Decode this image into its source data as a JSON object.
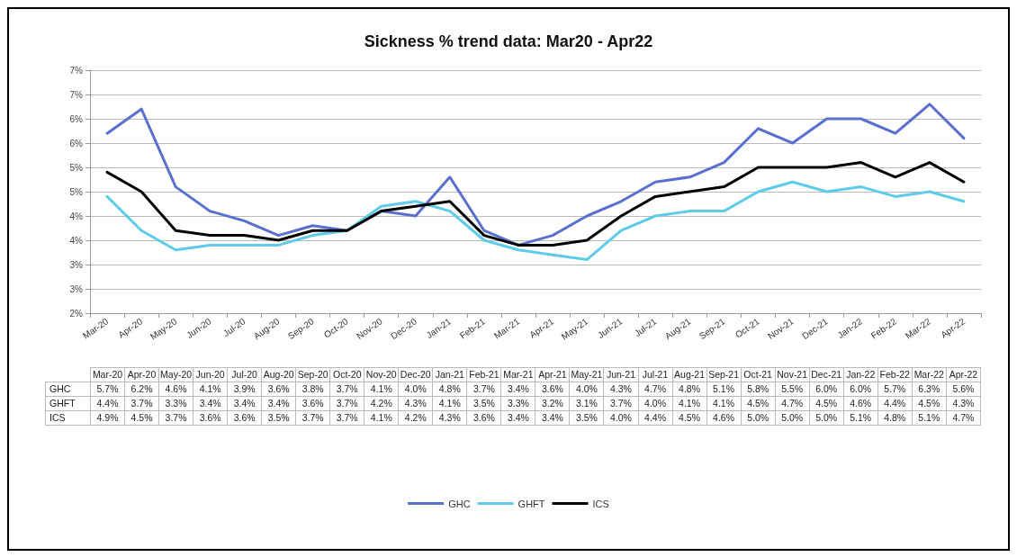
{
  "chart_data": {
    "type": "line",
    "title": "Sickness % trend data: Mar20 - Apr22",
    "categories": [
      "Mar-20",
      "Apr-20",
      "May-20",
      "Jun-20",
      "Jul-20",
      "Aug-20",
      "Sep-20",
      "Oct-20",
      "Nov-20",
      "Dec-20",
      "Jan-21",
      "Feb-21",
      "Mar-21",
      "Apr-21",
      "May-21",
      "Jun-21",
      "Jul-21",
      "Aug-21",
      "Sep-21",
      "Oct-21",
      "Nov-21",
      "Dec-21",
      "Jan-22",
      "Feb-22",
      "Mar-22",
      "Apr-22"
    ],
    "series": [
      {
        "name": "GHC",
        "color": "#5a6fcf",
        "values": [
          5.7,
          6.2,
          4.6,
          4.1,
          3.9,
          3.6,
          3.8,
          3.7,
          4.1,
          4.0,
          4.8,
          3.7,
          3.4,
          3.6,
          4.0,
          4.3,
          4.7,
          4.8,
          5.1,
          5.8,
          5.5,
          6.0,
          6.0,
          5.7,
          6.3,
          5.6
        ],
        "value_labels": [
          "5.7%",
          "6.2%",
          "4.6%",
          "4.1%",
          "3.9%",
          "3.6%",
          "3.8%",
          "3.7%",
          "4.1%",
          "4.0%",
          "4.8%",
          "3.7%",
          "3.4%",
          "3.6%",
          "4.0%",
          "4.3%",
          "4.7%",
          "4.8%",
          "5.1%",
          "5.8%",
          "5.5%",
          "6.0%",
          "6.0%",
          "5.7%",
          "6.3%",
          "5.6%"
        ]
      },
      {
        "name": "GHFT",
        "color": "#5fcbea",
        "values": [
          4.4,
          3.7,
          3.3,
          3.4,
          3.4,
          3.4,
          3.6,
          3.7,
          4.2,
          4.3,
          4.1,
          3.5,
          3.3,
          3.2,
          3.1,
          3.7,
          4.0,
          4.1,
          4.1,
          4.5,
          4.7,
          4.5,
          4.6,
          4.4,
          4.5,
          4.3
        ],
        "value_labels": [
          "4.4%",
          "3.7%",
          "3.3%",
          "3.4%",
          "3.4%",
          "3.4%",
          "3.6%",
          "3.7%",
          "4.2%",
          "4.3%",
          "4.1%",
          "3.5%",
          "3.3%",
          "3.2%",
          "3.1%",
          "3.7%",
          "4.0%",
          "4.1%",
          "4.1%",
          "4.5%",
          "4.7%",
          "4.5%",
          "4.6%",
          "4.4%",
          "4.5%",
          "4.3%"
        ]
      },
      {
        "name": "ICS",
        "color": "#000000",
        "values": [
          4.9,
          4.5,
          3.7,
          3.6,
          3.6,
          3.5,
          3.7,
          3.7,
          4.1,
          4.2,
          4.3,
          3.6,
          3.4,
          3.4,
          3.5,
          4.0,
          4.4,
          4.5,
          4.6,
          5.0,
          5.0,
          5.0,
          5.1,
          4.8,
          5.1,
          4.7
        ],
        "value_labels": [
          "4.9%",
          "4.5%",
          "3.7%",
          "3.6%",
          "3.6%",
          "3.5%",
          "3.7%",
          "3.7%",
          "4.1%",
          "4.2%",
          "4.3%",
          "3.6%",
          "3.4%",
          "3.4%",
          "3.5%",
          "4.0%",
          "4.4%",
          "4.5%",
          "4.6%",
          "5.0%",
          "5.0%",
          "5.0%",
          "5.1%",
          "4.8%",
          "5.1%",
          "4.7%"
        ]
      }
    ],
    "ylim": [
      2,
      7
    ],
    "yticks": [
      {
        "value": 2,
        "label": "2%"
      },
      {
        "value": 2.5,
        "label": "3%"
      },
      {
        "value": 3,
        "label": "3%"
      },
      {
        "value": 3.5,
        "label": "4%"
      },
      {
        "value": 4,
        "label": "4%"
      },
      {
        "value": 4.5,
        "label": "5%"
      },
      {
        "value": 5,
        "label": "5%"
      },
      {
        "value": 5.5,
        "label": "6%"
      },
      {
        "value": 6,
        "label": "6%"
      },
      {
        "value": 6.5,
        "label": "7%"
      },
      {
        "value": 7,
        "label": "7%"
      }
    ],
    "grid": "y",
    "legend": "bottom",
    "marker": "none",
    "line_style": "solid"
  }
}
